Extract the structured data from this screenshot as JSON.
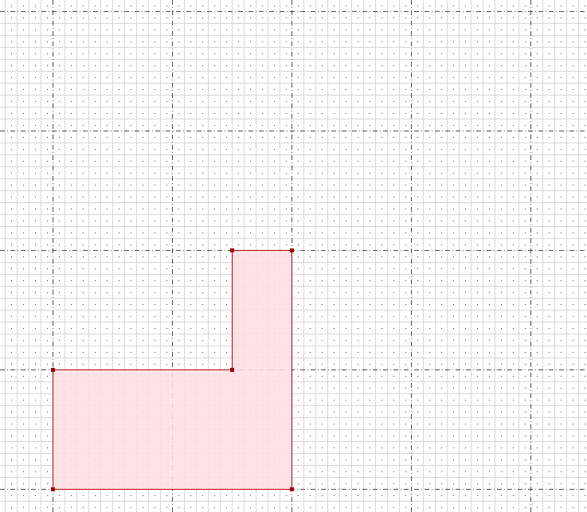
{
  "colors": {
    "background": "#ffffff",
    "minor_grid": "#d6d6d6",
    "major_grid": "#4a4a4a",
    "dot": "#333333",
    "shape_fill": "#ffdde1",
    "shape_stroke": "#b00000",
    "vertex": "#a00000"
  },
  "grid": {
    "minor_step_units": 1,
    "major_step_units": 10,
    "dots_per_cell": true
  },
  "shape": {
    "type": "polygon",
    "vertices": [
      [
        0,
        0
      ],
      [
        20,
        0
      ],
      [
        20,
        20
      ],
      [
        15,
        20
      ],
      [
        15,
        10
      ],
      [
        0,
        10
      ]
    ]
  }
}
